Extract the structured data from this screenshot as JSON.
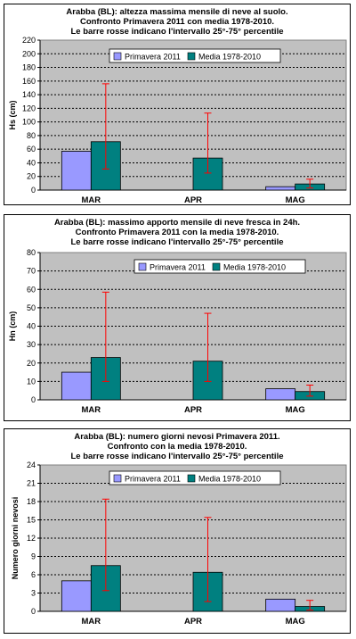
{
  "colors": {
    "plot_bg": "#c0c0c0",
    "series1": "#9999ff",
    "series2": "#008080",
    "error_bar": "#ff0000",
    "grid": "#000000"
  },
  "chart_data": [
    {
      "type": "bar",
      "title_lines": [
        "Arabba (BL): altezza massima mensile di neve al suolo.",
        "Confronto Primavera 2011 con media 1978-2010.",
        "Le barre rosse indicano l'intervallo 25°-75° percentile"
      ],
      "ylabel": "Hs (cm)",
      "xlabel": "",
      "ylim": [
        0,
        220
      ],
      "ytick_step": 20,
      "yticks": [
        "0",
        "20",
        "40",
        "60",
        "80",
        "100",
        "120",
        "140",
        "160",
        "180",
        "200",
        "220"
      ],
      "grid": true,
      "legend_position": "top-right",
      "categories": [
        "MAR",
        "APR",
        "MAG"
      ],
      "series": [
        {
          "name": "Primavera 2011",
          "values": [
            57,
            0,
            5
          ]
        },
        {
          "name": "Media 1978-2010",
          "values": [
            71,
            47,
            9
          ],
          "error_low": [
            31,
            25,
            3
          ],
          "error_high": [
            156,
            113,
            16
          ]
        }
      ]
    },
    {
      "type": "bar",
      "title_lines": [
        "Arabba (BL): massimo apporto mensile di neve fresca in 24h.",
        "Confronto Primavera 2011 con la media 1978-2010.",
        "Le barre rosse indicano l'intervallo 25°-75° percentile"
      ],
      "ylabel": "Hn (cm)",
      "xlabel": "",
      "ylim": [
        0,
        80
      ],
      "ytick_step": 10,
      "yticks": [
        "0",
        "10",
        "20",
        "30",
        "40",
        "50",
        "60",
        "70",
        "80"
      ],
      "grid": true,
      "legend_position": "top-right",
      "categories": [
        "MAR",
        "APR",
        "MAG"
      ],
      "series": [
        {
          "name": "Primavera 2011",
          "values": [
            15,
            0,
            6
          ]
        },
        {
          "name": "Media 1978-2010",
          "values": [
            23,
            21,
            4.5
          ],
          "error_low": [
            10,
            10,
            2
          ],
          "error_high": [
            58.5,
            47,
            8
          ]
        }
      ]
    },
    {
      "type": "bar",
      "title_lines": [
        "Arabba (BL): numero giorni nevosi Primavera 2011.",
        "Confronto con la media 1978-2010.",
        "Le barre rosse indicano l'intervallo 25°-75° percentile"
      ],
      "ylabel": "Numero giorni nevosi",
      "xlabel": "",
      "ylim": [
        0,
        24
      ],
      "ytick_step": 3,
      "yticks": [
        "0",
        "3",
        "6",
        "9",
        "12",
        "15",
        "18",
        "21",
        "24"
      ],
      "grid": true,
      "legend_position": "top-right",
      "categories": [
        "MAR",
        "APR",
        "MAG"
      ],
      "series": [
        {
          "name": "Primavera 2011",
          "values": [
            5,
            0,
            2
          ]
        },
        {
          "name": "Media 1978-2010",
          "values": [
            7.5,
            6.4,
            0.8
          ],
          "error_low": [
            3.4,
            1.6,
            0.2
          ],
          "error_high": [
            18.4,
            15.4,
            1.8
          ]
        }
      ]
    }
  ]
}
